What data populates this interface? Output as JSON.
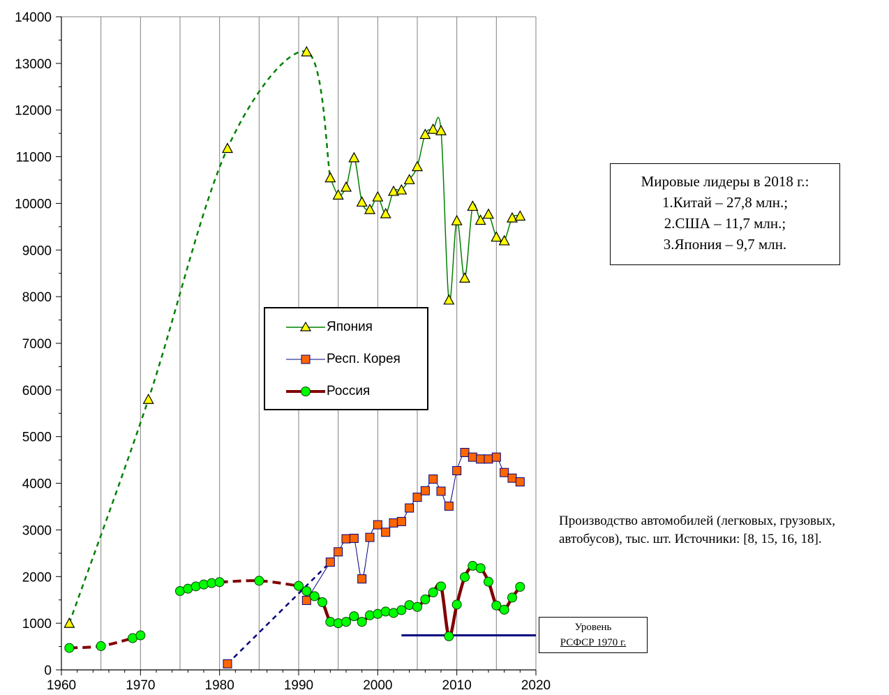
{
  "chart_data": {
    "type": "line",
    "title": "",
    "xlabel": "",
    "ylabel": "",
    "xlim": [
      1960,
      2020
    ],
    "ylim": [
      0,
      14000
    ],
    "x_ticks": [
      1960,
      1970,
      1980,
      1990,
      2000,
      2010,
      2020
    ],
    "y_ticks": [
      0,
      1000,
      2000,
      3000,
      4000,
      5000,
      6000,
      7000,
      8000,
      9000,
      10000,
      11000,
      12000,
      13000,
      14000
    ],
    "grid": "vertical",
    "legend_position": "center",
    "series": [
      {
        "name": "Япония",
        "color": "#008000",
        "marker": "triangle",
        "marker_color": "#ffff00",
        "dashed_points": [
          [
            1961,
            1000
          ],
          [
            1971,
            5800
          ],
          [
            1981,
            11180
          ],
          [
            1991,
            13250
          ],
          [
            1994,
            10550
          ]
        ],
        "points": [
          [
            1994,
            10550
          ],
          [
            1995,
            10180
          ],
          [
            1996,
            10350
          ],
          [
            1997,
            10980
          ],
          [
            1998,
            10030
          ],
          [
            1999,
            9870
          ],
          [
            2000,
            10140
          ],
          [
            2001,
            9780
          ],
          [
            2002,
            10260
          ],
          [
            2003,
            10290
          ],
          [
            2004,
            10510
          ],
          [
            2005,
            10790
          ],
          [
            2006,
            11480
          ],
          [
            2007,
            11590
          ],
          [
            2008,
            11560
          ],
          [
            2009,
            7930
          ],
          [
            2010,
            9630
          ],
          [
            2011,
            8400
          ],
          [
            2012,
            9940
          ],
          [
            2013,
            9640
          ],
          [
            2014,
            9770
          ],
          [
            2015,
            9280
          ],
          [
            2016,
            9200
          ],
          [
            2017,
            9690
          ],
          [
            2018,
            9730
          ]
        ]
      },
      {
        "name": "Респ. Корея",
        "color": "#000080",
        "marker": "square",
        "marker_color": "#ff6600",
        "dashed_points": [
          [
            1981,
            130
          ],
          [
            1994,
            2310
          ]
        ],
        "points": [
          [
            1991,
            1490
          ],
          [
            1994,
            2310
          ],
          [
            1995,
            2530
          ],
          [
            1996,
            2810
          ],
          [
            1997,
            2820
          ],
          [
            1998,
            1950
          ],
          [
            1999,
            2840
          ],
          [
            2000,
            3110
          ],
          [
            2001,
            2950
          ],
          [
            2002,
            3150
          ],
          [
            2003,
            3180
          ],
          [
            2004,
            3470
          ],
          [
            2005,
            3700
          ],
          [
            2006,
            3840
          ],
          [
            2007,
            4090
          ],
          [
            2008,
            3830
          ],
          [
            2009,
            3510
          ],
          [
            2010,
            4270
          ],
          [
            2011,
            4660
          ],
          [
            2012,
            4560
          ],
          [
            2013,
            4520
          ],
          [
            2014,
            4520
          ],
          [
            2015,
            4560
          ],
          [
            2016,
            4230
          ],
          [
            2017,
            4110
          ],
          [
            2018,
            4030
          ]
        ]
      },
      {
        "name": "Россия",
        "color": "#800000",
        "marker": "circle",
        "marker_color": "#00ff00",
        "dashed_points": [
          [
            1961,
            470
          ],
          [
            1965,
            510
          ],
          [
            1969,
            680
          ],
          [
            1970,
            740
          ]
        ],
        "dashed_points_2": [
          [
            1980,
            1880
          ],
          [
            1985,
            1910
          ],
          [
            1990,
            1800
          ]
        ],
        "segment_1975_1980": [
          [
            1975,
            1690
          ],
          [
            1976,
            1740
          ],
          [
            1977,
            1790
          ],
          [
            1978,
            1830
          ],
          [
            1979,
            1860
          ],
          [
            1980,
            1880
          ]
        ],
        "points": [
          [
            1990,
            1800
          ],
          [
            1991,
            1690
          ],
          [
            1992,
            1580
          ],
          [
            1993,
            1450
          ],
          [
            1994,
            1030
          ],
          [
            1995,
            1000
          ],
          [
            1996,
            1030
          ],
          [
            1997,
            1150
          ],
          [
            1998,
            1030
          ],
          [
            1999,
            1170
          ],
          [
            2000,
            1200
          ],
          [
            2001,
            1250
          ],
          [
            2002,
            1220
          ],
          [
            2003,
            1280
          ],
          [
            2004,
            1390
          ],
          [
            2005,
            1350
          ],
          [
            2006,
            1510
          ],
          [
            2007,
            1660
          ],
          [
            2008,
            1790
          ],
          [
            2009,
            720
          ],
          [
            2010,
            1400
          ],
          [
            2011,
            1990
          ],
          [
            2012,
            2230
          ],
          [
            2013,
            2180
          ],
          [
            2014,
            1890
          ],
          [
            2015,
            1380
          ],
          [
            2016,
            1290
          ],
          [
            2017,
            1550
          ],
          [
            2018,
            1780
          ]
        ]
      }
    ],
    "reference_line": {
      "y": 740,
      "x_range": [
        2003,
        2020
      ],
      "color": "#000080"
    }
  },
  "note": {
    "line1": "Мировые лидеры в 2018 г.:",
    "line2": "1.Китай – 27,8 млн.;",
    "line3": "2.США – 11,7 млн.;",
    "line4": "3.Япония – 9,7 млн."
  },
  "source": "Производство автомобилей (легковых, грузовых, автобусов), тыс. шт. Источники: [8, 15, 16, 18].",
  "level_label": {
    "line1": "Уровень",
    "line2": "РСФСР 1970 г."
  },
  "legend": {
    "japan": "Япония",
    "korea": "Респ. Корея",
    "russia": "Россия"
  }
}
